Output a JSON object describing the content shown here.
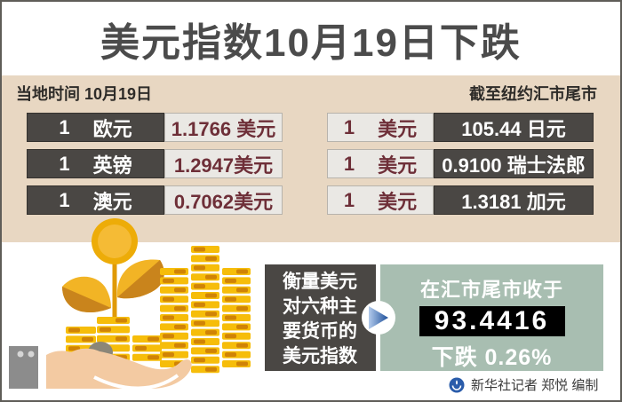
{
  "title": "美元指数10月19日下跌",
  "header": {
    "left_label": "当地时间 10月19日",
    "right_label": "截至纽约汇市尾市"
  },
  "rates_left": [
    {
      "amount": "1",
      "currency": "欧元",
      "value": "1.1766 美元"
    },
    {
      "amount": "1",
      "currency": "英镑",
      "value": "1.2947美元"
    },
    {
      "amount": "1",
      "currency": "澳元",
      "value": "0.7062美元"
    }
  ],
  "rates_right": [
    {
      "amount": "1",
      "currency": "美元",
      "value": "105.44 日元"
    },
    {
      "amount": "1",
      "currency": "美元",
      "value": "0.9100 瑞士法郎"
    },
    {
      "amount": "1",
      "currency": "美元",
      "value": "1.3181 加元"
    }
  ],
  "summary": {
    "line1": "衡量美元",
    "line2": "对六种主",
    "line3": "要货币的",
    "line4": "美元指数",
    "close_label": "在汇市尾市收于",
    "index_value": "93.4416",
    "change_label": "下跌 0.26%"
  },
  "credit": "新华社记者 郑悦 编制",
  "icons": {
    "arrow": "arrow-right-icon",
    "logo": "xinhua-logo"
  },
  "colors": {
    "beige": "#e8d7c2",
    "dark_box": "#4a4744",
    "light_box": "#eae8e4",
    "maroon": "#6e2f38",
    "sage_green": "#a8beb1",
    "black_panel": "#000000",
    "gold": "#f6bd0a",
    "gold_dark": "#d08306",
    "arrow_blue": "#2b5ea7"
  }
}
